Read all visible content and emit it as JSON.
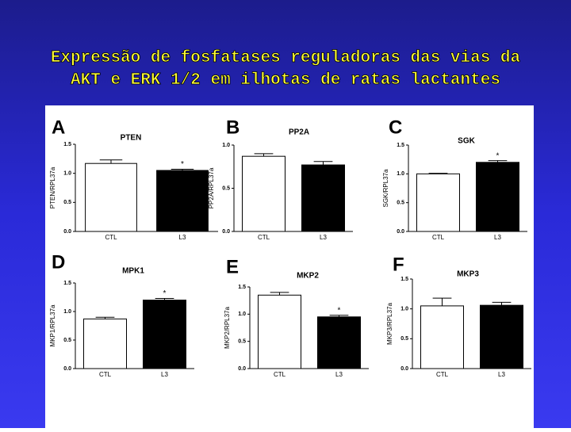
{
  "title": "Expressão de fosfatases reguladoras das vias da\nAKT e ERK 1/2 em ilhotas de ratas lactantes",
  "chart_data": [
    {
      "type": "bar",
      "panel": "A",
      "title": "PTEN",
      "ylabel": "PTEN/RPL37a",
      "categories": [
        "CTL",
        "L3"
      ],
      "values": [
        1.17,
        1.05
      ],
      "errors": [
        0.06,
        0.02
      ],
      "significance": [
        null,
        "*"
      ],
      "colors": [
        "#ffffff",
        "#000000"
      ],
      "ylim": [
        0,
        1.5
      ],
      "yticks": [
        {
          "value": 0,
          "label": "0.0"
        },
        {
          "value": 0.5,
          "label": "0.5"
        },
        {
          "value": 1,
          "label": "1.0"
        },
        1.5
      ]
    },
    {
      "type": "bar",
      "panel": "B",
      "title": "PP2A",
      "ylabel": "PP2A/RPL37a",
      "categories": [
        "CTL",
        "L3"
      ],
      "values": [
        0.87,
        0.77
      ],
      "errors": [
        0.03,
        0.04
      ],
      "significance": [
        null,
        null
      ],
      "colors": [
        "#ffffff",
        "#000000"
      ],
      "ylim": [
        0,
        1
      ],
      "yticks": [
        {
          "value": 0,
          "label": "0.0"
        },
        0.5,
        {
          "value": 1,
          "label": "1.0"
        }
      ]
    },
    {
      "type": "bar",
      "panel": "C",
      "title": "SGK",
      "ylabel": "SGK/RPL37a",
      "categories": [
        "CTL",
        "L3"
      ],
      "values": [
        1.0,
        1.2
      ],
      "errors": [
        0.01,
        0.03
      ],
      "significance": [
        null,
        "*"
      ],
      "colors": [
        "#ffffff",
        "#000000"
      ],
      "ylim": [
        0,
        1.5
      ],
      "yticks": [
        {
          "value": 0,
          "label": "0.0"
        },
        0.5,
        {
          "value": 1,
          "label": "1.0"
        },
        1.5
      ]
    },
    {
      "type": "bar",
      "panel": "D",
      "title": "MPK1",
      "ylabel": "MKP1/RPL37a",
      "categories": [
        "CTL",
        "L3"
      ],
      "values": [
        0.87,
        1.2
      ],
      "errors": [
        0.03,
        0.03
      ],
      "significance": [
        null,
        "*"
      ],
      "colors": [
        "#ffffff",
        "#000000"
      ],
      "ylim": [
        0,
        1.5
      ],
      "yticks": [
        {
          "value": 0,
          "label": "0.0"
        },
        0.5,
        {
          "value": 1,
          "label": "1.0"
        },
        1.5
      ]
    },
    {
      "type": "bar",
      "panel": "E",
      "title": "MKP2",
      "ylabel": "MKP2/RPL37a",
      "categories": [
        "CTL",
        "L3"
      ],
      "values": [
        1.35,
        0.95
      ],
      "errors": [
        0.05,
        0.03
      ],
      "significance": [
        null,
        "*"
      ],
      "colors": [
        "#ffffff",
        "#000000"
      ],
      "ylim": [
        0,
        1.5
      ],
      "yticks": [
        {
          "value": 0,
          "label": "0.0"
        },
        0.5,
        {
          "value": 1,
          "label": "1.0"
        },
        1.5
      ]
    },
    {
      "type": "bar",
      "panel": "F",
      "title": "MKP3",
      "ylabel": "MKP3/RPL37a",
      "categories": [
        "CTL",
        "L3"
      ],
      "values": [
        1.05,
        1.06
      ],
      "errors": [
        0.13,
        0.05
      ],
      "significance": [
        null,
        null
      ],
      "colors": [
        "#ffffff",
        "#000000"
      ],
      "ylim": [
        0,
        1.5
      ],
      "yticks": [
        {
          "value": 0,
          "label": "0.0"
        },
        0.5,
        {
          "value": 1,
          "label": "1.0"
        },
        1.5
      ]
    }
  ]
}
